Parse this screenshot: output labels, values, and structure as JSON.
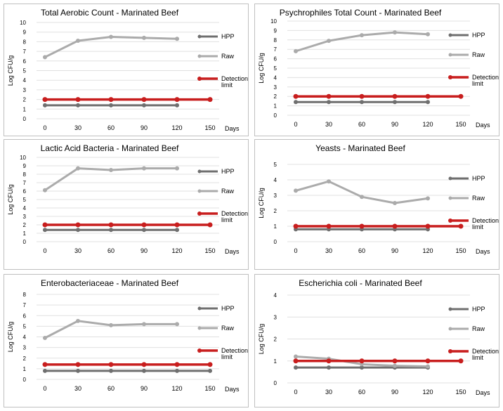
{
  "legend_labels": {
    "hpp": "HPP",
    "raw": "Raw",
    "detection": [
      "Detection",
      "limit"
    ]
  },
  "ylabel": "Log CFU/g",
  "xlabel": "Days",
  "colors": {
    "hpp": "#6f6f6f",
    "raw": "#ababab",
    "detection": "#c81e1e",
    "grid": "#e0e0e0",
    "border": "#bfbfbf"
  },
  "chart_data": [
    {
      "type": "line",
      "title": "Total Aerobic Count - Marinated Beef",
      "categories": [
        0,
        30,
        60,
        90,
        120,
        150
      ],
      "xlabel": "Days",
      "ylabel": "Log CFU/g",
      "ylim": [
        0,
        10
      ],
      "yticks": [
        0,
        1,
        2,
        3,
        4,
        5,
        6,
        7,
        8,
        9,
        10
      ],
      "grid": true,
      "legend": "right",
      "series": [
        {
          "name": "HPP",
          "values": [
            1.4,
            1.4,
            1.4,
            1.4,
            1.4,
            null
          ]
        },
        {
          "name": "Raw",
          "values": [
            6.4,
            8.1,
            8.5,
            8.4,
            8.3,
            null
          ]
        },
        {
          "name": "Detection limit",
          "values": [
            2,
            2,
            2,
            2,
            2,
            2
          ]
        }
      ]
    },
    {
      "type": "line",
      "title": "Psychrophiles Total Count - Marinated Beef",
      "categories": [
        0,
        30,
        60,
        90,
        120,
        150
      ],
      "xlabel": "Days",
      "ylabel": "Log CFU/g",
      "ylim": [
        0,
        10
      ],
      "yticks": [
        0,
        1,
        2,
        3,
        4,
        5,
        6,
        7,
        8,
        9,
        10
      ],
      "grid": true,
      "legend": "right",
      "series": [
        {
          "name": "HPP",
          "values": [
            1.4,
            1.4,
            1.4,
            1.4,
            1.4,
            null
          ]
        },
        {
          "name": "Raw",
          "values": [
            6.8,
            7.9,
            8.5,
            8.8,
            8.6,
            null
          ]
        },
        {
          "name": "Detection limit",
          "values": [
            2,
            2,
            2,
            2,
            2,
            2
          ]
        }
      ]
    },
    {
      "type": "line",
      "title": "Lactic Acid Bacteria - Marinated Beef",
      "categories": [
        0,
        30,
        60,
        90,
        120,
        150
      ],
      "xlabel": "Days",
      "ylabel": "Log CFU/g",
      "ylim": [
        0,
        10
      ],
      "yticks": [
        0,
        1,
        2,
        3,
        4,
        5,
        6,
        7,
        8,
        9,
        10
      ],
      "grid": true,
      "legend": "right",
      "series": [
        {
          "name": "HPP",
          "values": [
            1.4,
            1.4,
            1.4,
            1.4,
            1.4,
            null
          ]
        },
        {
          "name": "Raw",
          "values": [
            6.1,
            8.7,
            8.5,
            8.7,
            8.7,
            null
          ]
        },
        {
          "name": "Detection limit",
          "values": [
            2,
            2,
            2,
            2,
            2,
            2
          ]
        }
      ]
    },
    {
      "type": "line",
      "title": "Yeasts - Marinated Beef",
      "categories": [
        0,
        30,
        60,
        90,
        120,
        150
      ],
      "xlabel": "Days",
      "ylabel": "Log CFU/g",
      "ylim": [
        0,
        5
      ],
      "yticks": [
        0,
        1,
        2,
        3,
        4,
        5
      ],
      "grid": true,
      "legend": "right",
      "series": [
        {
          "name": "HPP",
          "values": [
            0.8,
            0.8,
            0.8,
            0.8,
            0.8,
            null
          ]
        },
        {
          "name": "Raw",
          "values": [
            3.3,
            3.9,
            2.9,
            2.5,
            2.8,
            null
          ]
        },
        {
          "name": "Detection limit",
          "values": [
            1,
            1,
            1,
            1,
            1,
            1
          ]
        }
      ]
    },
    {
      "type": "line",
      "title": "Enterobacteriaceae - Marinated Beef",
      "categories": [
        0,
        30,
        60,
        90,
        120,
        150
      ],
      "xlabel": "Days",
      "ylabel": "Log CFU/g",
      "ylim": [
        0,
        8
      ],
      "yticks": [
        0,
        1,
        2,
        3,
        4,
        5,
        6,
        7,
        8
      ],
      "grid": true,
      "legend": "right",
      "series": [
        {
          "name": "HPP",
          "values": [
            0.8,
            0.8,
            0.8,
            0.8,
            0.8,
            0.8
          ]
        },
        {
          "name": "Raw",
          "values": [
            3.9,
            5.5,
            5.1,
            5.2,
            5.2,
            null
          ]
        },
        {
          "name": "Detection limit",
          "values": [
            1.4,
            1.4,
            1.4,
            1.4,
            1.4,
            1.4
          ]
        }
      ]
    },
    {
      "type": "line",
      "title": "Escherichia coli - Marinated Beef",
      "categories": [
        0,
        30,
        60,
        90,
        120,
        150
      ],
      "xlabel": "Days",
      "ylabel": "Log CFU/g",
      "ylim": [
        0,
        4
      ],
      "yticks": [
        0,
        1,
        2,
        3,
        4
      ],
      "grid": true,
      "legend": "right",
      "series": [
        {
          "name": "HPP",
          "values": [
            0.7,
            0.7,
            0.7,
            0.7,
            0.7,
            null
          ]
        },
        {
          "name": "Raw",
          "values": [
            1.2,
            1.1,
            0.85,
            0.78,
            0.75,
            null
          ]
        },
        {
          "name": "Detection limit",
          "values": [
            1,
            1,
            1,
            1,
            1,
            1
          ]
        }
      ]
    }
  ]
}
